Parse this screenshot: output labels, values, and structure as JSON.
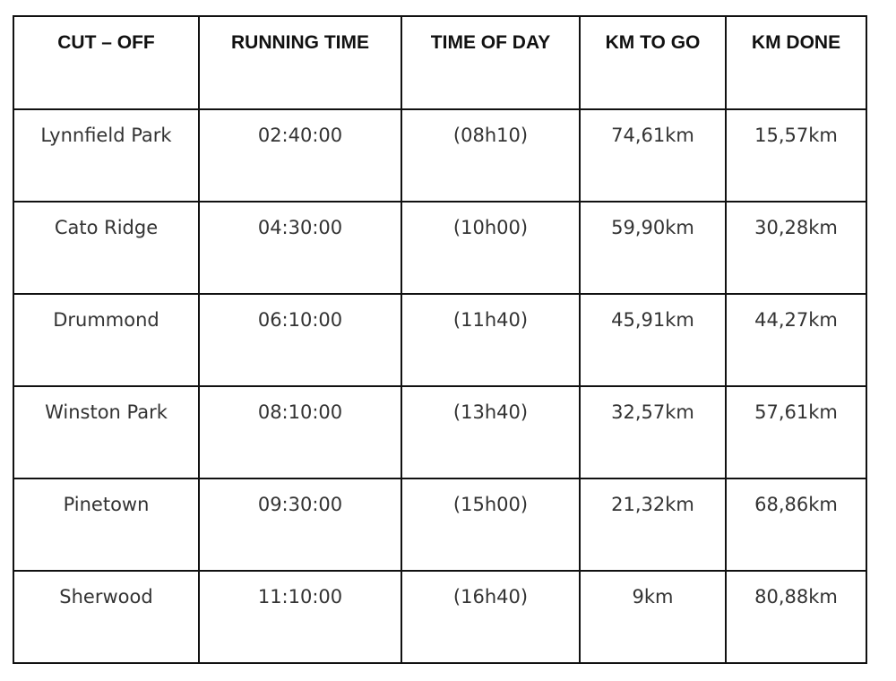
{
  "table": {
    "columns": [
      "CUT – OFF",
      "RUNNING TIME",
      "TIME OF DAY",
      "KM TO GO",
      "KM DONE"
    ],
    "rows": [
      [
        "Lynnfield Park",
        "02:40:00",
        "(08h10)",
        "74,61km",
        "15,57km"
      ],
      [
        "Cato Ridge",
        "04:30:00",
        "(10h00)",
        "59,90km",
        "30,28km"
      ],
      [
        "Drummond",
        "06:10:00",
        "(11h40)",
        "45,91km",
        "44,27km"
      ],
      [
        "Winston Park",
        "08:10:00",
        "(13h40)",
        "32,57km",
        "57,61km"
      ],
      [
        "Pinetown",
        "09:30:00",
        "(15h00)",
        "21,32km",
        "68,86km"
      ],
      [
        "Sherwood",
        "11:10:00",
        "(16h40)",
        "9km",
        "80,88km"
      ]
    ]
  }
}
